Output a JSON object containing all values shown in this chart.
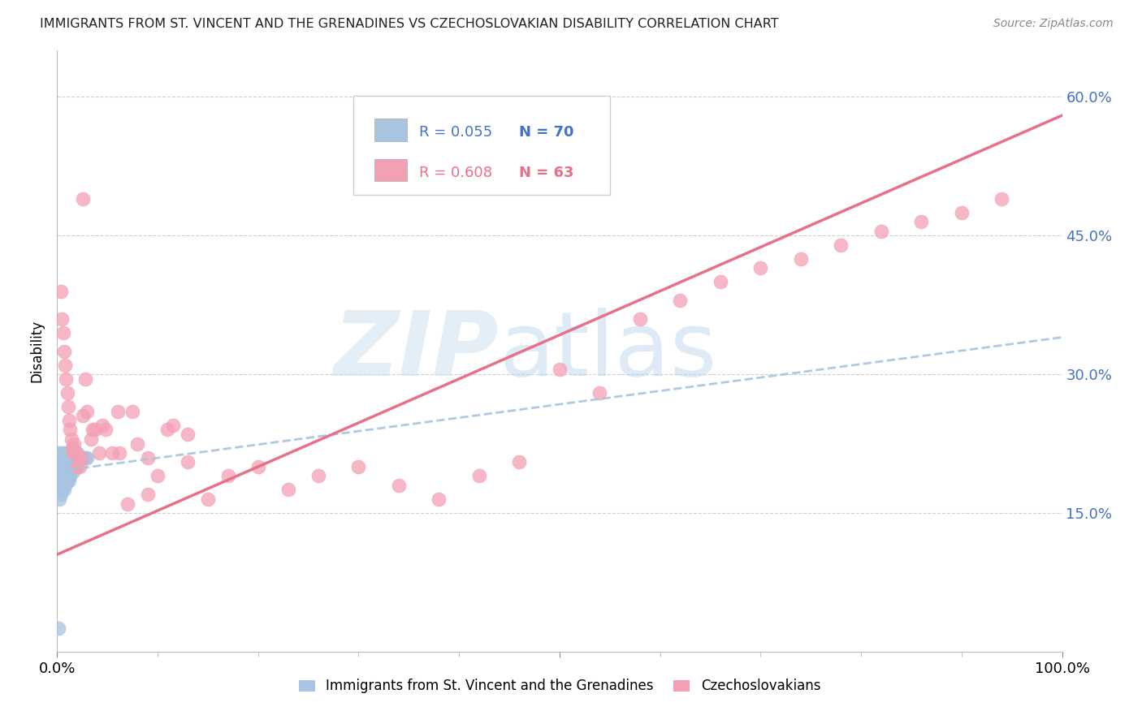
{
  "title": "IMMIGRANTS FROM ST. VINCENT AND THE GRENADINES VS CZECHOSLOVAKIAN DISABILITY CORRELATION CHART",
  "source": "Source: ZipAtlas.com",
  "ylabel": "Disability",
  "y_ticks": [
    0.0,
    0.15,
    0.3,
    0.45,
    0.6
  ],
  "y_tick_labels": [
    "",
    "15.0%",
    "30.0%",
    "45.0%",
    "60.0%"
  ],
  "xlim": [
    0.0,
    1.0
  ],
  "ylim": [
    0.0,
    0.65
  ],
  "legend_r1": "R = 0.055",
  "legend_n1": "N = 70",
  "legend_r2": "R = 0.608",
  "legend_n2": "N = 63",
  "legend_label1": "Immigrants from St. Vincent and the Grenadines",
  "legend_label2": "Czechoslovakians",
  "color_blue": "#a8c4e0",
  "color_pink": "#f4a0b4",
  "line_blue_color": "#a8c4e0",
  "line_pink_color": "#e8708a",
  "text_blue": "#4472c4",
  "text_pink": "#e8708a",
  "blue_x": [
    0.002,
    0.002,
    0.003,
    0.003,
    0.003,
    0.004,
    0.004,
    0.004,
    0.004,
    0.004,
    0.005,
    0.005,
    0.005,
    0.005,
    0.005,
    0.006,
    0.006,
    0.006,
    0.006,
    0.007,
    0.007,
    0.007,
    0.007,
    0.007,
    0.008,
    0.008,
    0.008,
    0.008,
    0.009,
    0.009,
    0.009,
    0.01,
    0.01,
    0.01,
    0.01,
    0.011,
    0.011,
    0.011,
    0.012,
    0.012,
    0.012,
    0.012,
    0.013,
    0.013,
    0.013,
    0.014,
    0.014,
    0.015,
    0.015,
    0.016,
    0.016,
    0.016,
    0.017,
    0.017,
    0.018,
    0.018,
    0.019,
    0.019,
    0.02,
    0.02,
    0.021,
    0.022,
    0.023,
    0.024,
    0.025,
    0.026,
    0.028,
    0.03,
    0.002,
    0.001
  ],
  "blue_y": [
    0.215,
    0.2,
    0.205,
    0.195,
    0.185,
    0.21,
    0.2,
    0.19,
    0.18,
    0.17,
    0.215,
    0.205,
    0.195,
    0.185,
    0.175,
    0.21,
    0.2,
    0.19,
    0.18,
    0.215,
    0.205,
    0.195,
    0.185,
    0.175,
    0.21,
    0.2,
    0.19,
    0.18,
    0.21,
    0.2,
    0.19,
    0.215,
    0.205,
    0.195,
    0.185,
    0.21,
    0.2,
    0.19,
    0.215,
    0.205,
    0.195,
    0.185,
    0.21,
    0.2,
    0.19,
    0.215,
    0.205,
    0.21,
    0.2,
    0.215,
    0.205,
    0.195,
    0.21,
    0.2,
    0.215,
    0.205,
    0.21,
    0.2,
    0.215,
    0.205,
    0.21,
    0.21,
    0.21,
    0.21,
    0.21,
    0.21,
    0.21,
    0.21,
    0.165,
    0.025
  ],
  "pink_x": [
    0.004,
    0.005,
    0.006,
    0.007,
    0.008,
    0.009,
    0.01,
    0.011,
    0.012,
    0.013,
    0.014,
    0.015,
    0.016,
    0.017,
    0.018,
    0.02,
    0.022,
    0.024,
    0.026,
    0.028,
    0.03,
    0.034,
    0.038,
    0.042,
    0.048,
    0.055,
    0.062,
    0.07,
    0.08,
    0.09,
    0.1,
    0.115,
    0.13,
    0.15,
    0.17,
    0.2,
    0.23,
    0.26,
    0.3,
    0.34,
    0.38,
    0.42,
    0.46,
    0.5,
    0.54,
    0.58,
    0.62,
    0.66,
    0.7,
    0.74,
    0.78,
    0.82,
    0.86,
    0.9,
    0.94,
    0.026,
    0.035,
    0.045,
    0.06,
    0.075,
    0.09,
    0.11,
    0.13
  ],
  "pink_y": [
    0.39,
    0.36,
    0.345,
    0.325,
    0.31,
    0.295,
    0.28,
    0.265,
    0.25,
    0.24,
    0.23,
    0.22,
    0.215,
    0.225,
    0.215,
    0.2,
    0.2,
    0.21,
    0.255,
    0.295,
    0.26,
    0.23,
    0.24,
    0.215,
    0.24,
    0.215,
    0.215,
    0.16,
    0.225,
    0.17,
    0.19,
    0.245,
    0.205,
    0.165,
    0.19,
    0.2,
    0.175,
    0.19,
    0.2,
    0.18,
    0.165,
    0.19,
    0.205,
    0.305,
    0.28,
    0.36,
    0.38,
    0.4,
    0.415,
    0.425,
    0.44,
    0.455,
    0.465,
    0.475,
    0.49,
    0.49,
    0.24,
    0.245,
    0.26,
    0.26,
    0.21,
    0.24,
    0.235
  ],
  "blue_trend_x0": 0.0,
  "blue_trend_x1": 1.0,
  "blue_trend_y0": 0.195,
  "blue_trend_y1": 0.34,
  "pink_trend_x0": 0.0,
  "pink_trend_x1": 1.0,
  "pink_trend_y0": 0.105,
  "pink_trend_y1": 0.58
}
